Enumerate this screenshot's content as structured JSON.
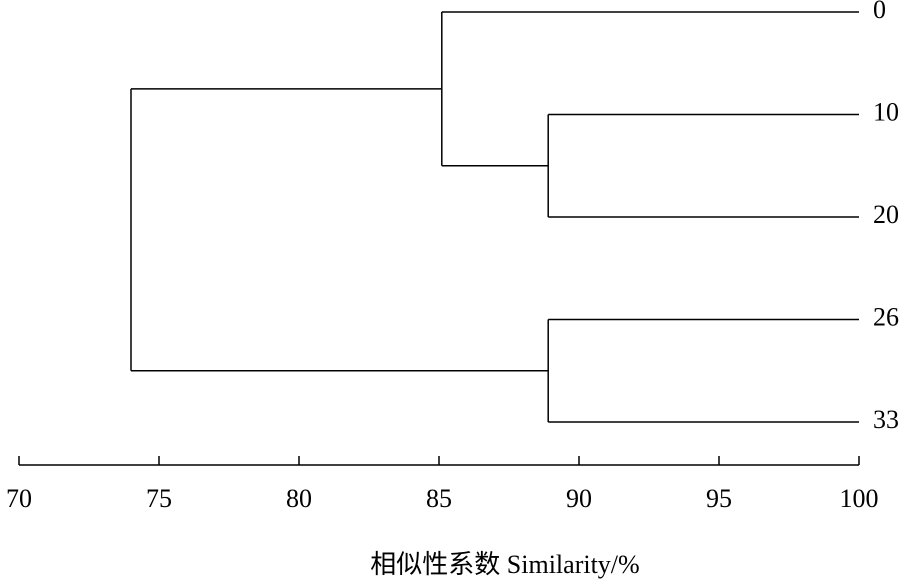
{
  "chart_data": {
    "type": "dendrogram",
    "xlabel": "相似性系数 Similarity/%",
    "xlim": [
      70,
      100
    ],
    "xticks": [
      70,
      75,
      80,
      85,
      90,
      95,
      100
    ],
    "color": "#000000",
    "tree": {
      "similarity": 74.0,
      "children": [
        {
          "similarity": 85.1,
          "children": [
            {
              "label": "0"
            },
            {
              "similarity": 88.9,
              "children": [
                {
                  "label": "10"
                },
                {
                  "label": "20"
                }
              ]
            }
          ]
        },
        {
          "similarity": 88.9,
          "children": [
            {
              "label": "26"
            },
            {
              "label": "33"
            }
          ]
        }
      ]
    }
  }
}
